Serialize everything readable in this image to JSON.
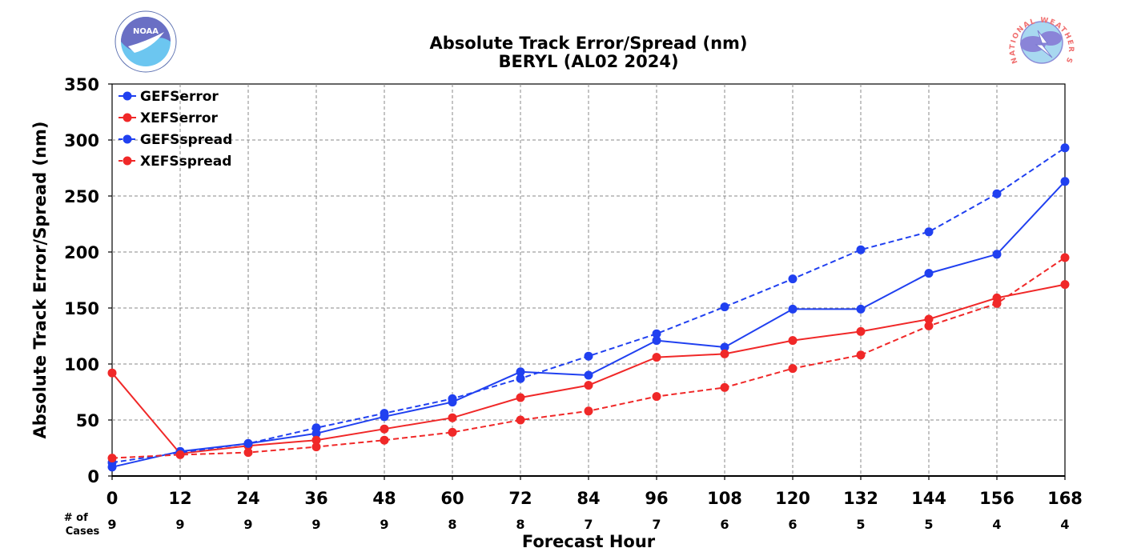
{
  "chart_data": {
    "type": "line",
    "title": "Absolute Track Error/Spread (nm)",
    "subtitle": "BERYL (AL02 2024)",
    "xlabel": "Forecast Hour",
    "ylabel": "Absolute Track Error/Spread (nm)",
    "x": [
      0,
      12,
      24,
      36,
      48,
      60,
      72,
      84,
      96,
      108,
      120,
      132,
      144,
      156,
      168
    ],
    "xticks": [
      "0",
      "12",
      "24",
      "36",
      "48",
      "60",
      "72",
      "84",
      "96",
      "108",
      "120",
      "132",
      "144",
      "156",
      "168"
    ],
    "ylim": [
      0,
      350
    ],
    "yticks": [
      "0",
      "50",
      "100",
      "150",
      "200",
      "250",
      "300",
      "350"
    ],
    "grid": true,
    "legend_position": "top-left",
    "cases_label": "# of\nCases",
    "cases": [
      "9",
      "9",
      "9",
      "9",
      "9",
      "8",
      "8",
      "7",
      "7",
      "6",
      "6",
      "5",
      "5",
      "4",
      "4"
    ],
    "series": [
      {
        "name": "GEFSerror",
        "color": "#2040f0",
        "style": "solid",
        "values": [
          8,
          22,
          29,
          38,
          53,
          66,
          93,
          90,
          121,
          115,
          149,
          149,
          181,
          198,
          263
        ]
      },
      {
        "name": "XEFSerror",
        "color": "#f02828",
        "style": "solid",
        "values": [
          92,
          20,
          27,
          32,
          42,
          52,
          70,
          81,
          106,
          109,
          121,
          129,
          140,
          159,
          171
        ]
      },
      {
        "name": "GEFSspread",
        "color": "#2040f0",
        "style": "dashed",
        "values": [
          12,
          21,
          29,
          43,
          56,
          69,
          87,
          107,
          127,
          151,
          176,
          202,
          218,
          252,
          293
        ]
      },
      {
        "name": "XEFSspread",
        "color": "#f02828",
        "style": "dashed",
        "values": [
          16,
          19,
          21,
          26,
          32,
          39,
          50,
          58,
          71,
          79,
          96,
          108,
          134,
          154,
          195
        ]
      }
    ]
  },
  "logos": {
    "left": {
      "name": "NOAA",
      "text": "NOAA"
    },
    "right": {
      "name": "National Weather Service",
      "text": "NATIONAL WEATHER SERVICE"
    }
  }
}
